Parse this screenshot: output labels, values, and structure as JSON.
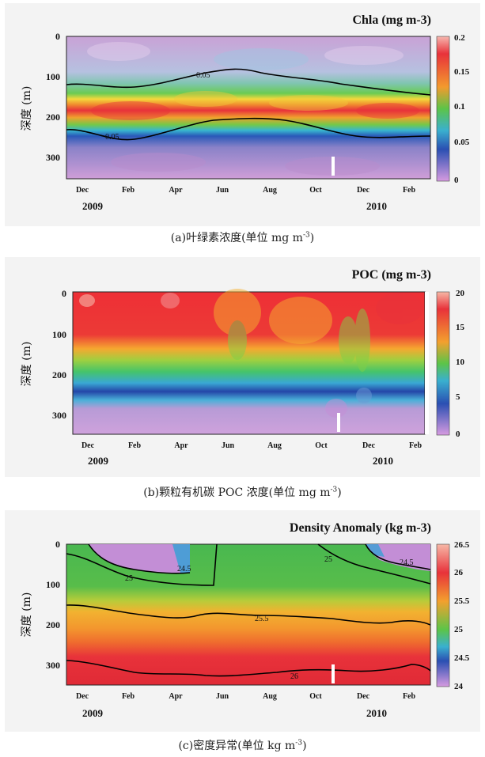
{
  "captions": {
    "a": {
      "main": "(a)叶绿素浓度(单位 mg m",
      "sup": "-3",
      "end": ")"
    },
    "b": {
      "main": "(b)颗粒有机碳 POC 浓度(单位 mg m",
      "sup": "-3",
      "end": ")"
    },
    "c": {
      "main": "(c)密度异常(单位 kg m",
      "sup": "-3",
      "end": ")"
    }
  },
  "chart_data": [
    {
      "type": "heatmap",
      "title": "Chla (mg m-3)",
      "ylabel": "深度 (m)",
      "xlabel": "",
      "x_ticks": [
        "Dec",
        "Feb",
        "Apr",
        "Jun",
        "Aug",
        "Oct",
        "Dec",
        "Feb"
      ],
      "x_years": [
        "2009",
        "2010"
      ],
      "y_ticks": [
        "0",
        "100",
        "200",
        "300"
      ],
      "ylim": [
        350,
        0
      ],
      "colorbar": {
        "min": 0,
        "max": 0.2,
        "ticks": [
          "0.2",
          "0.15",
          "0.1",
          "0.05",
          "0"
        ]
      },
      "contours": [
        {
          "label": "0.05",
          "depth_top": [
            120,
            125,
            110,
            118,
            100,
            88,
            80,
            78,
            95,
            105,
            118,
            122,
            135,
            128,
            140,
            145
          ],
          "depth_bottom": [
            228,
            232,
            252,
            244,
            220,
            212,
            205,
            198,
            202,
            212,
            230,
            238,
            250,
            236,
            244,
            248
          ]
        }
      ],
      "features": {
        "max_layer_depth": 180,
        "max_value": 0.2
      }
    },
    {
      "type": "heatmap",
      "title": "POC (mg m-3)",
      "ylabel": "深度 (m)",
      "xlabel": "",
      "x_ticks": [
        "Dec",
        "Feb",
        "Apr",
        "Jun",
        "Aug",
        "Oct",
        "Dec",
        "Feb"
      ],
      "x_years": [
        "2009",
        "2010"
      ],
      "y_ticks": [
        "0",
        "100",
        "200",
        "300"
      ],
      "ylim": [
        350,
        0
      ],
      "colorbar": {
        "min": 0,
        "max": 20,
        "ticks": [
          "20",
          "15",
          "10",
          "5",
          "0"
        ]
      },
      "features": {
        "high_layer_bottom": [
          150,
          175,
          170,
          180,
          165,
          150,
          140,
          145,
          150,
          160,
          175,
          185,
          190,
          180,
          175,
          170
        ],
        "low_layer_top": 290
      }
    },
    {
      "type": "heatmap",
      "title": "Density Anomaly (kg m-3)",
      "ylabel": "深度 (m)",
      "xlabel": "",
      "x_ticks": [
        "Dec",
        "Feb",
        "Apr",
        "Jun",
        "Aug",
        "Oct",
        "Dec",
        "Feb"
      ],
      "x_years": [
        "2009",
        "2010"
      ],
      "y_ticks": [
        "0",
        "100",
        "200",
        "300"
      ],
      "ylim": [
        350,
        0
      ],
      "colorbar": {
        "min": 24,
        "max": 26.5,
        "ticks": [
          "26.5",
          "26",
          "25.5",
          "25",
          "24.5",
          "24"
        ]
      },
      "contours": [
        {
          "label": "24.5"
        },
        {
          "label": "25",
          "depth": [
            40,
            52,
            70,
            88,
            98,
            100
          ]
        },
        {
          "label": "25",
          "depth": [
            0,
            30,
            50,
            65,
            80,
            110
          ]
        },
        {
          "label": "25.5",
          "depth": [
            145,
            155,
            185,
            200,
            180,
            178,
            190,
            205,
            198,
            210
          ]
        },
        {
          "label": "26",
          "depth": [
            245,
            260,
            280,
            300,
            305,
            300,
            290,
            295,
            280,
            290
          ]
        }
      ]
    }
  ]
}
